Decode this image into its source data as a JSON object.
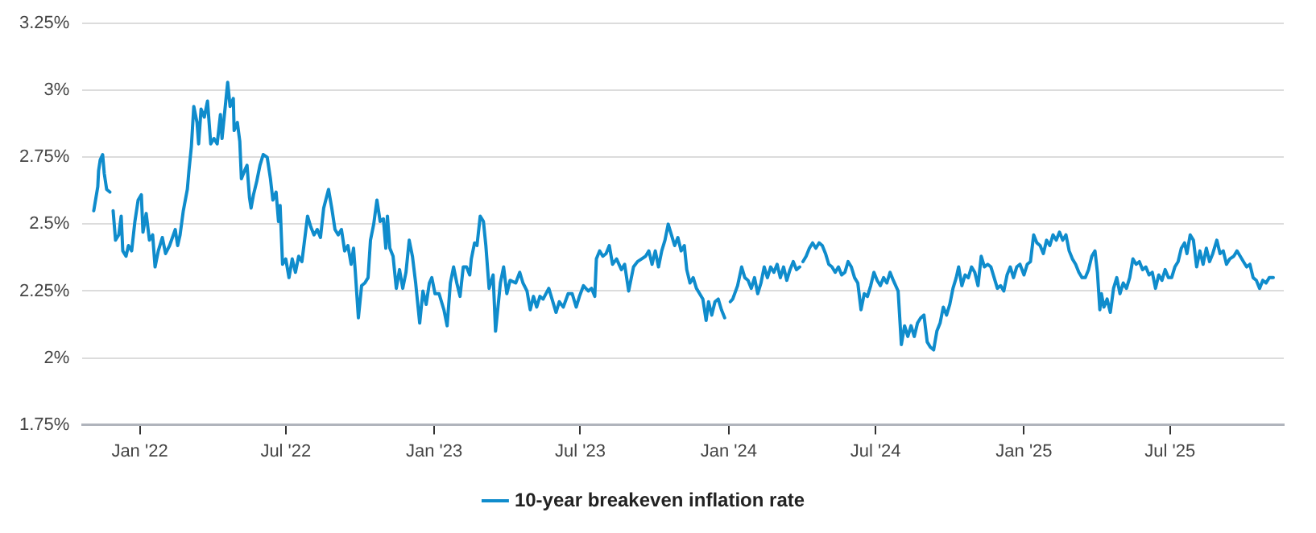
{
  "chart_data": {
    "type": "line",
    "xlim": [
      "2021-10-22",
      "2025-11-19"
    ],
    "xticks": [
      {
        "value": "2022-01-01",
        "label": "Jan '22"
      },
      {
        "value": "2022-07-01",
        "label": "Jul '22"
      },
      {
        "value": "2023-01-01",
        "label": "Jan '23"
      },
      {
        "value": "2023-07-01",
        "label": "Jul '23"
      },
      {
        "value": "2024-01-01",
        "label": "Jan '24"
      },
      {
        "value": "2024-07-01",
        "label": "Jul '24"
      },
      {
        "value": "2025-01-01",
        "label": "Jan '25"
      },
      {
        "value": "2025-07-01",
        "label": "Jul '25"
      }
    ],
    "ylim": [
      1.75,
      3.25
    ],
    "yticks": [
      {
        "value": 1.75,
        "label": "1.75%"
      },
      {
        "value": 2,
        "label": "2%"
      },
      {
        "value": 2.25,
        "label": "2.25%"
      },
      {
        "value": 2.5,
        "label": "2.5%"
      },
      {
        "value": 2.75,
        "label": "2.75%"
      },
      {
        "value": 3,
        "label": "3%"
      },
      {
        "value": 3.25,
        "label": "3.25%"
      }
    ],
    "grid": "y",
    "legend": "bottom",
    "marker": "none",
    "line_style": "solid",
    "x": [
      "2021-11-05",
      "2021-11-10",
      "2021-11-11",
      "2021-11-13",
      "2021-11-16",
      "2021-11-18",
      "2021-11-21",
      "2021-11-25",
      "2021-11-26",
      "2021-11-29",
      "2021-12-02",
      "2021-12-06",
      "2021-12-09",
      "2021-12-11",
      "2021-12-15",
      "2021-12-18",
      "2021-12-22",
      "2021-12-26",
      "2021-12-30",
      "2022-01-03",
      "2022-01-05",
      "2022-01-09",
      "2022-01-13",
      "2022-01-17",
      "2022-01-20",
      "2022-01-24",
      "2022-01-29",
      "2022-02-02",
      "2022-02-07",
      "2022-02-14",
      "2022-02-17",
      "2022-02-20",
      "2022-02-24",
      "2022-03-01",
      "2022-03-03",
      "2022-03-06",
      "2022-03-09",
      "2022-03-13",
      "2022-03-15",
      "2022-03-18",
      "2022-03-22",
      "2022-03-26",
      "2022-03-30",
      "2022-04-03",
      "2022-04-07",
      "2022-04-11",
      "2022-04-13",
      "2022-04-17",
      "2022-04-20",
      "2022-04-23",
      "2022-04-27",
      "2022-04-28",
      "2022-05-02",
      "2022-05-05",
      "2022-05-07",
      "2022-05-11",
      "2022-05-14",
      "2022-05-17",
      "2022-05-19",
      "2022-05-22",
      "2022-05-26",
      "2022-05-30",
      "2022-06-03",
      "2022-06-08",
      "2022-06-12",
      "2022-06-15",
      "2022-06-19",
      "2022-06-22",
      "2022-06-24",
      "2022-06-27",
      "2022-07-01",
      "2022-07-05",
      "2022-07-09",
      "2022-07-13",
      "2022-07-17",
      "2022-07-21",
      "2022-07-28",
      "2022-08-01",
      "2022-08-05",
      "2022-08-09",
      "2022-08-13",
      "2022-08-17",
      "2022-08-23",
      "2022-08-27",
      "2022-08-31",
      "2022-09-04",
      "2022-09-08",
      "2022-09-12",
      "2022-09-16",
      "2022-09-20",
      "2022-09-23",
      "2022-09-25",
      "2022-09-29",
      "2022-10-03",
      "2022-10-07",
      "2022-10-11",
      "2022-10-14",
      "2022-10-18",
      "2022-10-22",
      "2022-10-26",
      "2022-10-30",
      "2022-11-02",
      "2022-11-04",
      "2022-11-07",
      "2022-11-11",
      "2022-11-15",
      "2022-11-19",
      "2022-11-23",
      "2022-11-27",
      "2022-12-01",
      "2022-12-05",
      "2022-12-09",
      "2022-12-14",
      "2022-12-18",
      "2022-12-22",
      "2022-12-26",
      "2022-12-29",
      "2023-01-02",
      "2023-01-07",
      "2023-01-13",
      "2023-01-17",
      "2023-01-21",
      "2023-01-25",
      "2023-01-29",
      "2023-02-02",
      "2023-02-06",
      "2023-02-10",
      "2023-02-14",
      "2023-02-16",
      "2023-02-20",
      "2023-02-23",
      "2023-02-27",
      "2023-03-03",
      "2023-03-06",
      "2023-03-10",
      "2023-03-15",
      "2023-03-18",
      "2023-03-24",
      "2023-03-28",
      "2023-04-01",
      "2023-04-05",
      "2023-04-12",
      "2023-04-17",
      "2023-04-21",
      "2023-04-26",
      "2023-04-30",
      "2023-05-04",
      "2023-05-08",
      "2023-05-12",
      "2023-05-16",
      "2023-05-23",
      "2023-05-27",
      "2023-06-01",
      "2023-06-05",
      "2023-06-10",
      "2023-06-16",
      "2023-06-21",
      "2023-06-26",
      "2023-06-30",
      "2023-07-05",
      "2023-07-11",
      "2023-07-15",
      "2023-07-19",
      "2023-07-21",
      "2023-07-25",
      "2023-07-29",
      "2023-08-02",
      "2023-08-06",
      "2023-08-10",
      "2023-08-15",
      "2023-08-21",
      "2023-08-25",
      "2023-08-30",
      "2023-09-05",
      "2023-09-10",
      "2023-09-15",
      "2023-09-20",
      "2023-09-24",
      "2023-09-28",
      "2023-10-02",
      "2023-10-06",
      "2023-10-10",
      "2023-10-14",
      "2023-10-18",
      "2023-10-22",
      "2023-10-26",
      "2023-10-30",
      "2023-11-03",
      "2023-11-07",
      "2023-11-10",
      "2023-11-14",
      "2023-11-18",
      "2023-11-22",
      "2023-11-26",
      "2023-11-30",
      "2023-12-04",
      "2023-12-07",
      "2023-12-11",
      "2023-12-15",
      "2023-12-19",
      "2023-12-23",
      "2023-12-27",
      "2023-12-30",
      "2024-01-03",
      "2024-01-06",
      "2024-01-12",
      "2024-01-17",
      "2024-01-21",
      "2024-01-25",
      "2024-01-29",
      "2024-02-02",
      "2024-02-06",
      "2024-02-10",
      "2024-02-14",
      "2024-02-18",
      "2024-02-22",
      "2024-02-26",
      "2024-03-01",
      "2024-03-05",
      "2024-03-09",
      "2024-03-13",
      "2024-03-17",
      "2024-03-21",
      "2024-03-25",
      "2024-03-29",
      "2024-03-31",
      "2024-04-02",
      "2024-04-06",
      "2024-04-10",
      "2024-04-14",
      "2024-04-18",
      "2024-04-22",
      "2024-04-26",
      "2024-04-30",
      "2024-05-04",
      "2024-05-08",
      "2024-05-12",
      "2024-05-16",
      "2024-05-20",
      "2024-05-24",
      "2024-05-28",
      "2024-06-01",
      "2024-06-05",
      "2024-06-09",
      "2024-06-13",
      "2024-06-17",
      "2024-06-21",
      "2024-06-25",
      "2024-06-29",
      "2024-07-03",
      "2024-07-07",
      "2024-07-11",
      "2024-07-15",
      "2024-07-19",
      "2024-07-23",
      "2024-07-29",
      "2024-08-02",
      "2024-08-06",
      "2024-08-10",
      "2024-08-14",
      "2024-08-18",
      "2024-08-22",
      "2024-08-26",
      "2024-08-30",
      "2024-09-03",
      "2024-09-07",
      "2024-09-11",
      "2024-09-15",
      "2024-09-19",
      "2024-09-23",
      "2024-09-27",
      "2024-10-01",
      "2024-10-05",
      "2024-10-09",
      "2024-10-12",
      "2024-10-16",
      "2024-10-20",
      "2024-10-24",
      "2024-10-28",
      "2024-11-01",
      "2024-11-05",
      "2024-11-09",
      "2024-11-13",
      "2024-11-17",
      "2024-11-21",
      "2024-11-25",
      "2024-11-29",
      "2024-12-03",
      "2024-12-07",
      "2024-12-11",
      "2024-12-15",
      "2024-12-19",
      "2024-12-23",
      "2024-12-27",
      "2025-01-01",
      "2025-01-05",
      "2025-01-09",
      "2025-01-13",
      "2025-01-17",
      "2025-01-21",
      "2025-01-25",
      "2025-01-29",
      "2025-02-02",
      "2025-02-06",
      "2025-02-10",
      "2025-02-14",
      "2025-02-18",
      "2025-02-22",
      "2025-02-26",
      "2025-03-02",
      "2025-03-06",
      "2025-03-10",
      "2025-03-14",
      "2025-03-18",
      "2025-03-22",
      "2025-03-26",
      "2025-03-30",
      "2025-04-02",
      "2025-04-05",
      "2025-04-07",
      "2025-04-10",
      "2025-04-14",
      "2025-04-18",
      "2025-04-22",
      "2025-04-26",
      "2025-04-30",
      "2025-05-04",
      "2025-05-08",
      "2025-05-12",
      "2025-05-16",
      "2025-05-20",
      "2025-05-24",
      "2025-05-28",
      "2025-06-01",
      "2025-06-05",
      "2025-06-09",
      "2025-06-13",
      "2025-06-17",
      "2025-06-21",
      "2025-06-25",
      "2025-06-29",
      "2025-07-03",
      "2025-07-07",
      "2025-07-11",
      "2025-07-15",
      "2025-07-19",
      "2025-07-22",
      "2025-07-26",
      "2025-07-30",
      "2025-08-03",
      "2025-08-07",
      "2025-08-11",
      "2025-08-15",
      "2025-08-19",
      "2025-08-23",
      "2025-08-28",
      "2025-09-01",
      "2025-09-05",
      "2025-09-09",
      "2025-09-13",
      "2025-09-18",
      "2025-09-22",
      "2025-09-26",
      "2025-09-30",
      "2025-10-04",
      "2025-10-08",
      "2025-10-12",
      "2025-10-16",
      "2025-10-20",
      "2025-10-24",
      "2025-10-28",
      "2025-11-01",
      "2025-11-06"
    ],
    "series": [
      {
        "name": "10-year breakeven inflation rate",
        "color": "#0f8ccc",
        "values": [
          2.55,
          2.64,
          2.7,
          2.74,
          2.76,
          2.69,
          2.63,
          2.62,
          null,
          2.55,
          2.44,
          2.46,
          2.53,
          2.4,
          2.38,
          2.42,
          2.4,
          2.51,
          2.59,
          2.61,
          2.47,
          2.54,
          2.44,
          2.46,
          2.34,
          2.4,
          2.45,
          2.39,
          2.42,
          2.48,
          2.42,
          2.46,
          2.55,
          2.63,
          2.7,
          2.79,
          2.94,
          2.88,
          2.8,
          2.93,
          2.9,
          2.96,
          2.8,
          2.82,
          2.8,
          2.91,
          2.82,
          2.94,
          3.03,
          2.94,
          2.97,
          2.85,
          2.88,
          2.81,
          2.67,
          2.7,
          2.72,
          2.6,
          2.56,
          2.61,
          2.66,
          2.72,
          2.76,
          2.75,
          2.67,
          2.59,
          2.62,
          2.51,
          2.57,
          2.35,
          2.37,
          2.3,
          2.37,
          2.32,
          2.38,
          2.36,
          2.53,
          2.49,
          2.46,
          2.48,
          2.45,
          2.56,
          2.63,
          2.56,
          2.48,
          2.46,
          2.48,
          2.4,
          2.42,
          2.35,
          2.41,
          2.33,
          2.15,
          2.27,
          2.28,
          2.3,
          2.44,
          2.5,
          2.59,
          2.51,
          2.52,
          2.41,
          2.53,
          2.41,
          2.38,
          2.26,
          2.33,
          2.26,
          2.32,
          2.44,
          2.38,
          2.28,
          2.13,
          2.25,
          2.2,
          2.28,
          2.3,
          2.24,
          2.24,
          2.18,
          2.12,
          2.28,
          2.34,
          2.28,
          2.23,
          2.34,
          2.34,
          2.31,
          2.37,
          2.43,
          2.42,
          2.53,
          2.51,
          2.42,
          2.26,
          2.31,
          2.1,
          2.28,
          2.34,
          2.24,
          2.29,
          2.28,
          2.32,
          2.28,
          2.25,
          2.18,
          2.23,
          2.19,
          2.23,
          2.22,
          2.26,
          2.22,
          2.17,
          2.21,
          2.19,
          2.24,
          2.24,
          2.19,
          2.23,
          2.27,
          2.25,
          2.26,
          2.23,
          2.37,
          2.4,
          2.38,
          2.39,
          2.42,
          2.35,
          2.37,
          2.33,
          2.35,
          2.25,
          2.34,
          2.36,
          2.37,
          2.38,
          2.4,
          2.35,
          2.4,
          2.34,
          2.4,
          2.44,
          2.5,
          2.46,
          2.42,
          2.45,
          2.4,
          2.42,
          2.33,
          2.28,
          2.3,
          2.26,
          2.24,
          2.22,
          2.14,
          2.21,
          2.16,
          2.21,
          2.22,
          2.18,
          2.15,
          null,
          2.21,
          2.22,
          2.27,
          2.34,
          2.3,
          2.29,
          2.26,
          2.3,
          2.24,
          2.28,
          2.34,
          2.3,
          2.34,
          2.32,
          2.35,
          2.3,
          2.34,
          2.29,
          2.33,
          2.36,
          2.33,
          2.34,
          null,
          2.36,
          2.38,
          2.41,
          2.43,
          2.41,
          2.43,
          2.42,
          2.39,
          2.35,
          2.34,
          2.32,
          2.34,
          2.31,
          2.32,
          2.36,
          2.34,
          2.3,
          2.28,
          2.18,
          2.24,
          2.23,
          2.27,
          2.32,
          2.29,
          2.27,
          2.3,
          2.28,
          2.32,
          2.29,
          2.25,
          2.05,
          2.12,
          2.08,
          2.12,
          2.08,
          2.13,
          2.15,
          2.16,
          2.06,
          2.04,
          2.03,
          2.1,
          2.13,
          2.19,
          2.16,
          2.2,
          2.26,
          2.3,
          2.34,
          2.27,
          2.31,
          2.3,
          2.34,
          2.32,
          2.27,
          2.38,
          2.34,
          2.35,
          2.34,
          2.3,
          2.26,
          2.27,
          2.25,
          2.31,
          2.34,
          2.3,
          2.34,
          2.35,
          2.31,
          2.35,
          2.36,
          2.46,
          2.43,
          2.42,
          2.39,
          2.44,
          2.42,
          2.46,
          2.44,
          2.47,
          2.44,
          2.46,
          2.4,
          2.37,
          2.35,
          2.32,
          2.3,
          2.3,
          2.33,
          2.38,
          2.4,
          2.32,
          2.18,
          2.24,
          2.19,
          2.22,
          2.17,
          2.26,
          2.3,
          2.24,
          2.28,
          2.26,
          2.3,
          2.37,
          2.35,
          2.36,
          2.33,
          2.34,
          2.31,
          2.32,
          2.26,
          2.31,
          2.29,
          2.33,
          2.3,
          2.3,
          2.34,
          2.36,
          2.41,
          2.43,
          2.39,
          2.46,
          2.44,
          2.34,
          2.4,
          2.35,
          2.41,
          2.36,
          2.39,
          2.44,
          2.39,
          2.4,
          2.35,
          2.37,
          2.38,
          2.4,
          2.38,
          2.36,
          2.34,
          2.35,
          2.3,
          2.29,
          2.26,
          2.29,
          2.28,
          2.3,
          2.3
        ]
      }
    ]
  }
}
